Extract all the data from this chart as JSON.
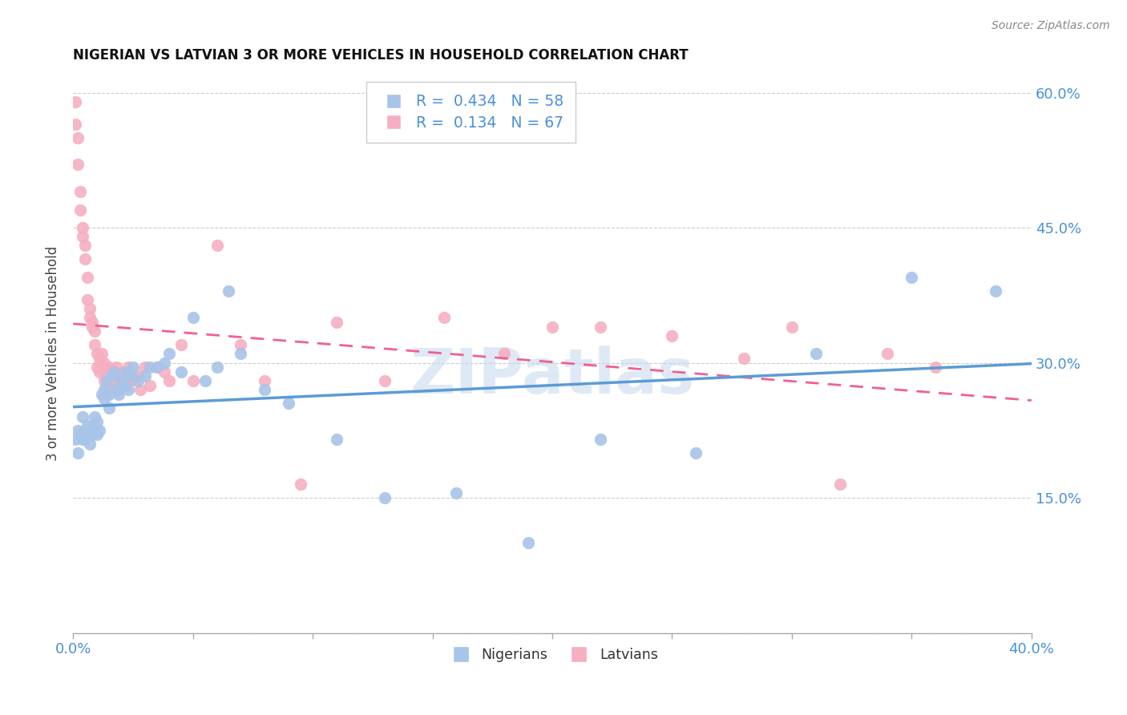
{
  "title": "NIGERIAN VS LATVIAN 3 OR MORE VEHICLES IN HOUSEHOLD CORRELATION CHART",
  "source": "Source: ZipAtlas.com",
  "ylabel": "3 or more Vehicles in Household",
  "xmin": 0.0,
  "xmax": 0.4,
  "ymin": 0.0,
  "ymax": 0.62,
  "legend_blue_r": "0.434",
  "legend_blue_n": "58",
  "legend_pink_r": "0.134",
  "legend_pink_n": "67",
  "blue_color": "#a8c4e8",
  "pink_color": "#f5afc0",
  "blue_line_color": "#5b9bd5",
  "pink_line_color": "#f06090",
  "watermark": "ZIPatlas",
  "nigerians_x": [
    0.001,
    0.002,
    0.002,
    0.003,
    0.004,
    0.004,
    0.005,
    0.005,
    0.006,
    0.006,
    0.007,
    0.007,
    0.008,
    0.008,
    0.009,
    0.009,
    0.01,
    0.01,
    0.011,
    0.012,
    0.013,
    0.013,
    0.014,
    0.015,
    0.015,
    0.016,
    0.017,
    0.018,
    0.019,
    0.02,
    0.021,
    0.022,
    0.023,
    0.024,
    0.025,
    0.027,
    0.03,
    0.032,
    0.035,
    0.038,
    0.04,
    0.045,
    0.05,
    0.055,
    0.06,
    0.065,
    0.07,
    0.08,
    0.09,
    0.11,
    0.13,
    0.16,
    0.19,
    0.22,
    0.26,
    0.31,
    0.35,
    0.385
  ],
  "nigerians_y": [
    0.215,
    0.2,
    0.225,
    0.22,
    0.24,
    0.215,
    0.225,
    0.215,
    0.22,
    0.23,
    0.21,
    0.225,
    0.23,
    0.22,
    0.24,
    0.225,
    0.22,
    0.235,
    0.225,
    0.265,
    0.27,
    0.26,
    0.28,
    0.25,
    0.265,
    0.285,
    0.29,
    0.27,
    0.265,
    0.28,
    0.275,
    0.29,
    0.27,
    0.285,
    0.295,
    0.28,
    0.285,
    0.295,
    0.295,
    0.3,
    0.31,
    0.29,
    0.35,
    0.28,
    0.295,
    0.38,
    0.31,
    0.27,
    0.255,
    0.215,
    0.15,
    0.155,
    0.1,
    0.215,
    0.2,
    0.31,
    0.395,
    0.38
  ],
  "latvians_x": [
    0.001,
    0.001,
    0.002,
    0.002,
    0.003,
    0.003,
    0.004,
    0.004,
    0.005,
    0.005,
    0.006,
    0.006,
    0.007,
    0.007,
    0.008,
    0.008,
    0.009,
    0.009,
    0.01,
    0.01,
    0.011,
    0.011,
    0.012,
    0.012,
    0.013,
    0.013,
    0.014,
    0.015,
    0.015,
    0.016,
    0.016,
    0.017,
    0.017,
    0.018,
    0.018,
    0.019,
    0.02,
    0.021,
    0.022,
    0.023,
    0.024,
    0.025,
    0.027,
    0.028,
    0.03,
    0.032,
    0.035,
    0.038,
    0.04,
    0.045,
    0.05,
    0.06,
    0.07,
    0.08,
    0.095,
    0.11,
    0.13,
    0.155,
    0.18,
    0.2,
    0.22,
    0.25,
    0.28,
    0.3,
    0.32,
    0.34,
    0.36
  ],
  "latvians_y": [
    0.59,
    0.565,
    0.55,
    0.52,
    0.49,
    0.47,
    0.45,
    0.44,
    0.43,
    0.415,
    0.395,
    0.37,
    0.36,
    0.35,
    0.34,
    0.345,
    0.335,
    0.32,
    0.295,
    0.31,
    0.305,
    0.29,
    0.295,
    0.31,
    0.28,
    0.3,
    0.285,
    0.295,
    0.27,
    0.29,
    0.285,
    0.29,
    0.28,
    0.295,
    0.275,
    0.27,
    0.285,
    0.29,
    0.275,
    0.295,
    0.28,
    0.285,
    0.285,
    0.27,
    0.295,
    0.275,
    0.295,
    0.29,
    0.28,
    0.32,
    0.28,
    0.43,
    0.32,
    0.28,
    0.165,
    0.345,
    0.28,
    0.35,
    0.31,
    0.34,
    0.34,
    0.33,
    0.305,
    0.34,
    0.165,
    0.31,
    0.295
  ]
}
